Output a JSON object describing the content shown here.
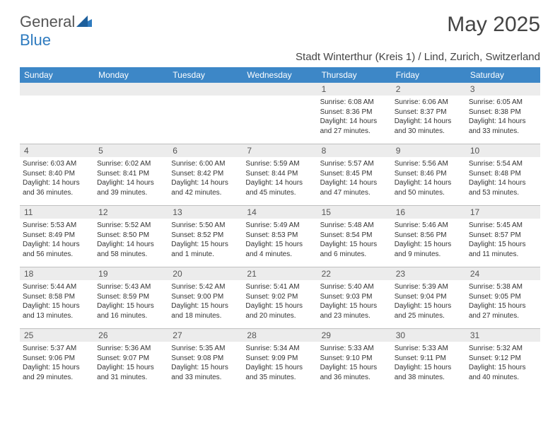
{
  "brand": {
    "part1": "General",
    "part2": "Blue"
  },
  "title": "May 2025",
  "subtitle": "Stadt Winterthur (Kreis 1) / Lind, Zurich, Switzerland",
  "colors": {
    "header_bg": "#3d87c7",
    "header_text": "#ffffff",
    "daynum_bg": "#ececec",
    "border": "#bfbfbf",
    "body_text": "#333333"
  },
  "day_names": [
    "Sunday",
    "Monday",
    "Tuesday",
    "Wednesday",
    "Thursday",
    "Friday",
    "Saturday"
  ],
  "weeks": [
    [
      {
        "n": "",
        "sr": "",
        "ss": "",
        "dl1": "",
        "dl2": ""
      },
      {
        "n": "",
        "sr": "",
        "ss": "",
        "dl1": "",
        "dl2": ""
      },
      {
        "n": "",
        "sr": "",
        "ss": "",
        "dl1": "",
        "dl2": ""
      },
      {
        "n": "",
        "sr": "",
        "ss": "",
        "dl1": "",
        "dl2": ""
      },
      {
        "n": "1",
        "sr": "Sunrise: 6:08 AM",
        "ss": "Sunset: 8:36 PM",
        "dl1": "Daylight: 14 hours",
        "dl2": "and 27 minutes."
      },
      {
        "n": "2",
        "sr": "Sunrise: 6:06 AM",
        "ss": "Sunset: 8:37 PM",
        "dl1": "Daylight: 14 hours",
        "dl2": "and 30 minutes."
      },
      {
        "n": "3",
        "sr": "Sunrise: 6:05 AM",
        "ss": "Sunset: 8:38 PM",
        "dl1": "Daylight: 14 hours",
        "dl2": "and 33 minutes."
      }
    ],
    [
      {
        "n": "4",
        "sr": "Sunrise: 6:03 AM",
        "ss": "Sunset: 8:40 PM",
        "dl1": "Daylight: 14 hours",
        "dl2": "and 36 minutes."
      },
      {
        "n": "5",
        "sr": "Sunrise: 6:02 AM",
        "ss": "Sunset: 8:41 PM",
        "dl1": "Daylight: 14 hours",
        "dl2": "and 39 minutes."
      },
      {
        "n": "6",
        "sr": "Sunrise: 6:00 AM",
        "ss": "Sunset: 8:42 PM",
        "dl1": "Daylight: 14 hours",
        "dl2": "and 42 minutes."
      },
      {
        "n": "7",
        "sr": "Sunrise: 5:59 AM",
        "ss": "Sunset: 8:44 PM",
        "dl1": "Daylight: 14 hours",
        "dl2": "and 45 minutes."
      },
      {
        "n": "8",
        "sr": "Sunrise: 5:57 AM",
        "ss": "Sunset: 8:45 PM",
        "dl1": "Daylight: 14 hours",
        "dl2": "and 47 minutes."
      },
      {
        "n": "9",
        "sr": "Sunrise: 5:56 AM",
        "ss": "Sunset: 8:46 PM",
        "dl1": "Daylight: 14 hours",
        "dl2": "and 50 minutes."
      },
      {
        "n": "10",
        "sr": "Sunrise: 5:54 AM",
        "ss": "Sunset: 8:48 PM",
        "dl1": "Daylight: 14 hours",
        "dl2": "and 53 minutes."
      }
    ],
    [
      {
        "n": "11",
        "sr": "Sunrise: 5:53 AM",
        "ss": "Sunset: 8:49 PM",
        "dl1": "Daylight: 14 hours",
        "dl2": "and 56 minutes."
      },
      {
        "n": "12",
        "sr": "Sunrise: 5:52 AM",
        "ss": "Sunset: 8:50 PM",
        "dl1": "Daylight: 14 hours",
        "dl2": "and 58 minutes."
      },
      {
        "n": "13",
        "sr": "Sunrise: 5:50 AM",
        "ss": "Sunset: 8:52 PM",
        "dl1": "Daylight: 15 hours",
        "dl2": "and 1 minute."
      },
      {
        "n": "14",
        "sr": "Sunrise: 5:49 AM",
        "ss": "Sunset: 8:53 PM",
        "dl1": "Daylight: 15 hours",
        "dl2": "and 4 minutes."
      },
      {
        "n": "15",
        "sr": "Sunrise: 5:48 AM",
        "ss": "Sunset: 8:54 PM",
        "dl1": "Daylight: 15 hours",
        "dl2": "and 6 minutes."
      },
      {
        "n": "16",
        "sr": "Sunrise: 5:46 AM",
        "ss": "Sunset: 8:56 PM",
        "dl1": "Daylight: 15 hours",
        "dl2": "and 9 minutes."
      },
      {
        "n": "17",
        "sr": "Sunrise: 5:45 AM",
        "ss": "Sunset: 8:57 PM",
        "dl1": "Daylight: 15 hours",
        "dl2": "and 11 minutes."
      }
    ],
    [
      {
        "n": "18",
        "sr": "Sunrise: 5:44 AM",
        "ss": "Sunset: 8:58 PM",
        "dl1": "Daylight: 15 hours",
        "dl2": "and 13 minutes."
      },
      {
        "n": "19",
        "sr": "Sunrise: 5:43 AM",
        "ss": "Sunset: 8:59 PM",
        "dl1": "Daylight: 15 hours",
        "dl2": "and 16 minutes."
      },
      {
        "n": "20",
        "sr": "Sunrise: 5:42 AM",
        "ss": "Sunset: 9:00 PM",
        "dl1": "Daylight: 15 hours",
        "dl2": "and 18 minutes."
      },
      {
        "n": "21",
        "sr": "Sunrise: 5:41 AM",
        "ss": "Sunset: 9:02 PM",
        "dl1": "Daylight: 15 hours",
        "dl2": "and 20 minutes."
      },
      {
        "n": "22",
        "sr": "Sunrise: 5:40 AM",
        "ss": "Sunset: 9:03 PM",
        "dl1": "Daylight: 15 hours",
        "dl2": "and 23 minutes."
      },
      {
        "n": "23",
        "sr": "Sunrise: 5:39 AM",
        "ss": "Sunset: 9:04 PM",
        "dl1": "Daylight: 15 hours",
        "dl2": "and 25 minutes."
      },
      {
        "n": "24",
        "sr": "Sunrise: 5:38 AM",
        "ss": "Sunset: 9:05 PM",
        "dl1": "Daylight: 15 hours",
        "dl2": "and 27 minutes."
      }
    ],
    [
      {
        "n": "25",
        "sr": "Sunrise: 5:37 AM",
        "ss": "Sunset: 9:06 PM",
        "dl1": "Daylight: 15 hours",
        "dl2": "and 29 minutes."
      },
      {
        "n": "26",
        "sr": "Sunrise: 5:36 AM",
        "ss": "Sunset: 9:07 PM",
        "dl1": "Daylight: 15 hours",
        "dl2": "and 31 minutes."
      },
      {
        "n": "27",
        "sr": "Sunrise: 5:35 AM",
        "ss": "Sunset: 9:08 PM",
        "dl1": "Daylight: 15 hours",
        "dl2": "and 33 minutes."
      },
      {
        "n": "28",
        "sr": "Sunrise: 5:34 AM",
        "ss": "Sunset: 9:09 PM",
        "dl1": "Daylight: 15 hours",
        "dl2": "and 35 minutes."
      },
      {
        "n": "29",
        "sr": "Sunrise: 5:33 AM",
        "ss": "Sunset: 9:10 PM",
        "dl1": "Daylight: 15 hours",
        "dl2": "and 36 minutes."
      },
      {
        "n": "30",
        "sr": "Sunrise: 5:33 AM",
        "ss": "Sunset: 9:11 PM",
        "dl1": "Daylight: 15 hours",
        "dl2": "and 38 minutes."
      },
      {
        "n": "31",
        "sr": "Sunrise: 5:32 AM",
        "ss": "Sunset: 9:12 PM",
        "dl1": "Daylight: 15 hours",
        "dl2": "and 40 minutes."
      }
    ]
  ]
}
